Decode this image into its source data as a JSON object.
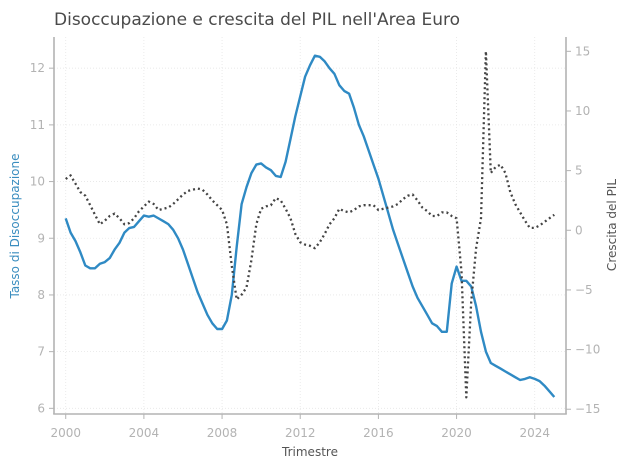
{
  "chart_data": {
    "type": "line",
    "title": "Disoccupazione e crescita del PIL nell'Area Euro",
    "xlabel": "Trimestre",
    "ylabel_left": "Tasso di Disoccupazione",
    "ylabel_right": "Crescita del PIL",
    "xlim": [
      1999.4,
      2025.6
    ],
    "ylim_left": [
      5.9,
      12.55
    ],
    "ylim_right": [
      -15.4,
      16.2
    ],
    "x_ticks": [
      2000,
      2004,
      2008,
      2012,
      2016,
      2020,
      2024
    ],
    "y_ticks_left": [
      6,
      7,
      8,
      9,
      10,
      11,
      12
    ],
    "y_ticks_right": [
      -15,
      -10,
      -5,
      0,
      5,
      10,
      15
    ],
    "grid": true,
    "colors": {
      "unemployment": "#2f8ac4",
      "gdp": "#444444"
    },
    "series": [
      {
        "axis": "left",
        "style": "solid",
        "x": [
          2000.0,
          2000.25,
          2000.5,
          2000.75,
          2001.0,
          2001.25,
          2001.5,
          2001.75,
          2002.0,
          2002.25,
          2002.5,
          2002.75,
          2003.0,
          2003.25,
          2003.5,
          2003.75,
          2004.0,
          2004.25,
          2004.5,
          2004.75,
          2005.0,
          2005.25,
          2005.5,
          2005.75,
          2006.0,
          2006.25,
          2006.5,
          2006.75,
          2007.0,
          2007.25,
          2007.5,
          2007.75,
          2008.0,
          2008.25,
          2008.5,
          2008.75,
          2009.0,
          2009.25,
          2009.5,
          2009.75,
          2010.0,
          2010.25,
          2010.5,
          2010.75,
          2011.0,
          2011.25,
          2011.5,
          2011.75,
          2012.0,
          2012.25,
          2012.5,
          2012.75,
          2013.0,
          2013.25,
          2013.5,
          2013.75,
          2014.0,
          2014.25,
          2014.5,
          2014.75,
          2015.0,
          2015.25,
          2015.5,
          2015.75,
          2016.0,
          2016.25,
          2016.5,
          2016.75,
          2017.0,
          2017.25,
          2017.5,
          2017.75,
          2018.0,
          2018.25,
          2018.5,
          2018.75,
          2019.0,
          2019.25,
          2019.5,
          2019.75,
          2020.0,
          2020.25,
          2020.5,
          2020.75,
          2021.0,
          2021.25,
          2021.5,
          2021.75,
          2022.0,
          2022.25,
          2022.5,
          2022.75,
          2023.0,
          2023.25,
          2023.5,
          2023.75,
          2024.0,
          2024.25,
          2024.5,
          2024.75,
          2025.0
        ],
        "values": [
          9.35,
          9.1,
          8.95,
          8.75,
          8.52,
          8.47,
          8.47,
          8.55,
          8.58,
          8.65,
          8.8,
          8.92,
          9.1,
          9.18,
          9.2,
          9.3,
          9.4,
          9.38,
          9.4,
          9.35,
          9.3,
          9.25,
          9.15,
          9.0,
          8.8,
          8.55,
          8.3,
          8.05,
          7.85,
          7.65,
          7.5,
          7.4,
          7.4,
          7.55,
          8.0,
          8.85,
          9.6,
          9.9,
          10.15,
          10.3,
          10.32,
          10.25,
          10.2,
          10.1,
          10.08,
          10.35,
          10.75,
          11.15,
          11.5,
          11.85,
          12.05,
          12.22,
          12.2,
          12.12,
          12.0,
          11.9,
          11.7,
          11.6,
          11.55,
          11.3,
          11.0,
          10.8,
          10.55,
          10.3,
          10.05,
          9.75,
          9.45,
          9.15,
          8.9,
          8.65,
          8.4,
          8.15,
          7.95,
          7.8,
          7.65,
          7.5,
          7.45,
          7.35,
          7.35,
          8.2,
          8.5,
          8.25,
          8.25,
          8.15,
          7.8,
          7.35,
          7.0,
          6.8,
          6.75,
          6.7,
          6.65,
          6.6,
          6.55,
          6.5,
          6.52,
          6.55,
          6.52,
          6.48,
          6.4,
          6.3,
          6.2
        ]
      },
      {
        "axis": "right",
        "style": "dotted",
        "x": [
          2000.0,
          2000.25,
          2000.5,
          2000.75,
          2001.0,
          2001.25,
          2001.5,
          2001.75,
          2002.0,
          2002.25,
          2002.5,
          2002.75,
          2003.0,
          2003.25,
          2003.5,
          2003.75,
          2004.0,
          2004.25,
          2004.5,
          2004.75,
          2005.0,
          2005.25,
          2005.5,
          2005.75,
          2006.0,
          2006.25,
          2006.5,
          2006.75,
          2007.0,
          2007.25,
          2007.5,
          2007.75,
          2008.0,
          2008.25,
          2008.5,
          2008.75,
          2009.0,
          2009.25,
          2009.5,
          2009.75,
          2010.0,
          2010.25,
          2010.5,
          2010.75,
          2011.0,
          2011.25,
          2011.5,
          2011.75,
          2012.0,
          2012.25,
          2012.5,
          2012.75,
          2013.0,
          2013.25,
          2013.5,
          2013.75,
          2014.0,
          2014.25,
          2014.5,
          2014.75,
          2015.0,
          2015.25,
          2015.5,
          2015.75,
          2016.0,
          2016.25,
          2016.5,
          2016.75,
          2017.0,
          2017.25,
          2017.5,
          2017.75,
          2018.0,
          2018.25,
          2018.5,
          2018.75,
          2019.0,
          2019.25,
          2019.5,
          2019.75,
          2020.0,
          2020.25,
          2020.5,
          2020.75,
          2021.0,
          2021.25,
          2021.5,
          2021.75,
          2022.0,
          2022.25,
          2022.5,
          2022.75,
          2023.0,
          2023.25,
          2023.5,
          2023.75,
          2024.0,
          2024.25,
          2024.5,
          2024.75,
          2025.0
        ],
        "values": [
          4.3,
          4.6,
          3.9,
          3.2,
          2.9,
          2.1,
          1.3,
          0.5,
          0.8,
          1.2,
          1.4,
          1.0,
          0.5,
          0.6,
          1.0,
          1.6,
          2.0,
          2.4,
          2.2,
          1.7,
          1.8,
          1.9,
          2.2,
          2.6,
          3.0,
          3.3,
          3.4,
          3.5,
          3.4,
          3.0,
          2.5,
          2.1,
          1.7,
          0.5,
          -3.0,
          -5.8,
          -5.4,
          -4.8,
          -2.5,
          0.5,
          1.8,
          2.0,
          2.1,
          2.7,
          2.5,
          1.8,
          1.0,
          -0.3,
          -1.0,
          -1.2,
          -1.3,
          -1.5,
          -1.0,
          -0.3,
          0.5,
          1.0,
          1.8,
          1.6,
          1.5,
          1.7,
          2.0,
          2.1,
          2.1,
          2.1,
          1.7,
          1.8,
          1.9,
          2.0,
          2.2,
          2.6,
          2.9,
          3.0,
          2.5,
          1.9,
          1.6,
          1.2,
          1.2,
          1.5,
          1.5,
          1.2,
          1.0,
          -3.5,
          -14.0,
          -6.0,
          -1.5,
          1.0,
          15.0,
          4.8,
          5.3,
          5.5,
          4.8,
          3.2,
          2.2,
          1.5,
          0.8,
          0.2,
          0.2,
          0.4,
          0.7,
          1.0,
          1.3
        ]
      }
    ]
  }
}
